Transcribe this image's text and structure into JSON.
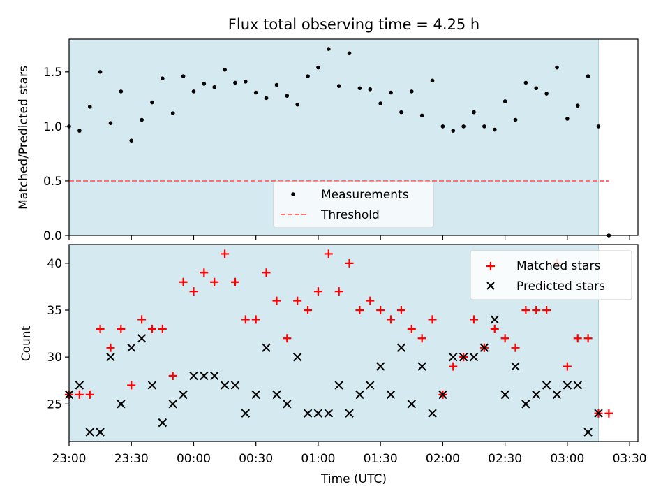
{
  "title": "Flux total observing time = 4.25 h",
  "colors": {
    "band": "#d4eaf0",
    "measurement": "#000000",
    "threshold": "#ff7070",
    "matched": "#ff0000",
    "predicted": "#000000"
  },
  "chart_data": [
    {
      "type": "scatter",
      "ylabel": "Matched/Predicted stars",
      "ylim": [
        0,
        1.8
      ],
      "y_ticks": [
        "0.0",
        "0.5",
        "1.0",
        "1.5"
      ],
      "x": [
        "23:00",
        "23:05",
        "23:10",
        "23:15",
        "23:20",
        "23:25",
        "23:30",
        "23:35",
        "23:40",
        "23:45",
        "23:50",
        "23:55",
        "00:00",
        "00:05",
        "00:10",
        "00:15",
        "00:20",
        "00:25",
        "00:30",
        "00:35",
        "00:40",
        "00:45",
        "00:50",
        "00:55",
        "01:00",
        "01:05",
        "01:10",
        "01:15",
        "01:20",
        "01:25",
        "01:30",
        "01:35",
        "01:40",
        "01:45",
        "01:50",
        "01:55",
        "02:00",
        "02:05",
        "02:10",
        "02:15",
        "02:20",
        "02:25",
        "02:30",
        "02:35",
        "02:40",
        "02:45",
        "02:50",
        "02:55",
        "03:00",
        "03:05",
        "03:10",
        "03:15",
        "03:20"
      ],
      "series": [
        {
          "name": "Measurements",
          "marker": "dot",
          "values": [
            1.0,
            0.96,
            1.18,
            1.5,
            1.03,
            1.32,
            0.87,
            1.06,
            1.22,
            1.44,
            1.12,
            1.46,
            1.32,
            1.39,
            1.36,
            1.52,
            1.4,
            1.41,
            1.31,
            1.26,
            1.38,
            1.28,
            1.2,
            1.46,
            1.54,
            1.71,
            1.37,
            1.67,
            1.35,
            1.34,
            1.21,
            1.31,
            1.13,
            1.32,
            1.1,
            1.42,
            1.0,
            0.96,
            1.0,
            1.13,
            1.0,
            0.97,
            1.23,
            1.06,
            1.4,
            1.35,
            1.3,
            1.54,
            1.07,
            1.19,
            1.46,
            1.0,
            0.0
          ]
        },
        {
          "name": "Threshold",
          "style": "dashed",
          "x_range": [
            "23:00",
            "03:20"
          ],
          "value": 0.5
        }
      ],
      "observing_window": [
        "23:00",
        "03:15"
      ],
      "legend": "lower-center",
      "grid": false
    },
    {
      "type": "scatter",
      "xlabel": "Time (UTC)",
      "ylabel": "Count",
      "ylim": [
        21,
        42
      ],
      "y_ticks": [
        "25",
        "30",
        "35",
        "40"
      ],
      "x_ticks": [
        "23:00",
        "23:30",
        "00:00",
        "00:30",
        "01:00",
        "01:30",
        "02:00",
        "02:30",
        "03:00",
        "03:30"
      ],
      "x": [
        "23:00",
        "23:05",
        "23:10",
        "23:15",
        "23:20",
        "23:25",
        "23:30",
        "23:35",
        "23:40",
        "23:45",
        "23:50",
        "23:55",
        "00:00",
        "00:05",
        "00:10",
        "00:15",
        "00:20",
        "00:25",
        "00:30",
        "00:35",
        "00:40",
        "00:45",
        "00:50",
        "00:55",
        "01:00",
        "01:05",
        "01:10",
        "01:15",
        "01:20",
        "01:25",
        "01:30",
        "01:35",
        "01:40",
        "01:45",
        "01:50",
        "01:55",
        "02:00",
        "02:05",
        "02:10",
        "02:15",
        "02:20",
        "02:25",
        "02:30",
        "02:35",
        "02:40",
        "02:45",
        "02:50",
        "02:55",
        "03:00",
        "03:05",
        "03:10",
        "03:15",
        "03:20"
      ],
      "series": [
        {
          "name": "Matched stars",
          "marker": "plus",
          "values": [
            26,
            26,
            26,
            33,
            31,
            33,
            27,
            34,
            33,
            33,
            28,
            38,
            37,
            39,
            38,
            41,
            38,
            34,
            34,
            39,
            36,
            32,
            36,
            35,
            37,
            41,
            37,
            40,
            35,
            36,
            35,
            34,
            35,
            33,
            32,
            34,
            26,
            29,
            30,
            34,
            31,
            33,
            32,
            31,
            35,
            35,
            35,
            40,
            29,
            32,
            32,
            24,
            24
          ]
        },
        {
          "name": "Predicted stars",
          "marker": "x",
          "values": [
            26,
            27,
            22,
            22,
            30,
            25,
            31,
            32,
            27,
            23,
            25,
            26,
            28,
            28,
            28,
            27,
            27,
            24,
            26,
            31,
            26,
            25,
            30,
            24,
            24,
            24,
            27,
            24,
            26,
            27,
            29,
            26,
            31,
            25,
            29,
            24,
            26,
            30,
            30,
            30,
            31,
            34,
            26,
            29,
            25,
            26,
            27,
            26,
            27,
            27,
            22,
            24,
            null
          ]
        }
      ],
      "observing_window": [
        "23:00",
        "03:15"
      ],
      "legend": "top-right",
      "grid": false
    }
  ]
}
